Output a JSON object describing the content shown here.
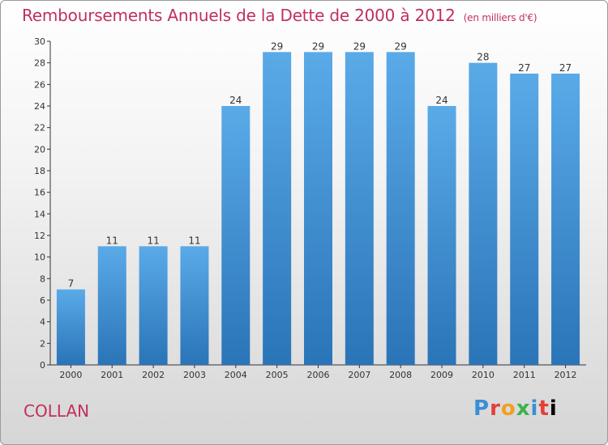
{
  "title": "Remboursements Annuels de la Dette de 2000 à 2012",
  "unit_note": "(en milliers d'€)",
  "place": "COLLAN",
  "brand": [
    "P",
    "r",
    "o",
    "x",
    "i",
    "t",
    "i"
  ],
  "colors": {
    "title": "#c0305a",
    "bar_top": "#5aaae8",
    "bar_bottom": "#2a74b8",
    "axis": "#333333"
  },
  "chart_data": {
    "type": "bar",
    "categories": [
      "2000",
      "2001",
      "2002",
      "2003",
      "2004",
      "2005",
      "2006",
      "2007",
      "2008",
      "2009",
      "2010",
      "2011",
      "2012"
    ],
    "values": [
      7,
      11,
      11,
      11,
      24,
      29,
      29,
      29,
      29,
      24,
      28,
      27,
      27
    ],
    "title": "Remboursements Annuels de la Dette de 2000 à 2012",
    "xlabel": "",
    "ylabel": "",
    "ylim": [
      0,
      30
    ],
    "yticks": [
      0,
      2,
      4,
      6,
      8,
      10,
      12,
      14,
      16,
      18,
      20,
      22,
      24,
      26,
      28,
      30
    ],
    "grid": false,
    "data_labels": true
  }
}
